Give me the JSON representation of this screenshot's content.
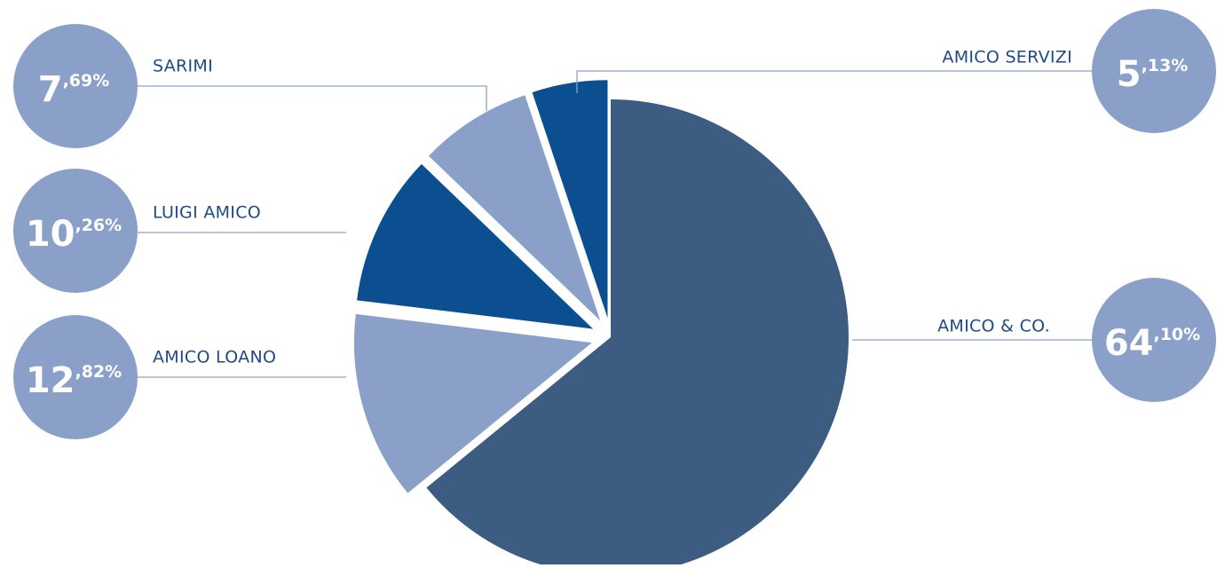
{
  "chart_data": {
    "type": "pie",
    "categories": [
      "AMICO & CO.",
      "AMICO LOANO",
      "LUIGI AMICO",
      "SARIMI",
      "AMICO SERVIZI"
    ],
    "values": [
      64.1,
      12.82,
      10.26,
      7.69,
      5.13
    ],
    "value_labels": [
      "64,10%",
      "12,82%",
      "10,26%",
      "7,69%",
      "5,13%"
    ],
    "colors": [
      "#3c5c82",
      "#8aa0c9",
      "#0b4f90",
      "#8aa0c9",
      "#0b4f90"
    ],
    "callout_color": "#8aa0c9"
  }
}
